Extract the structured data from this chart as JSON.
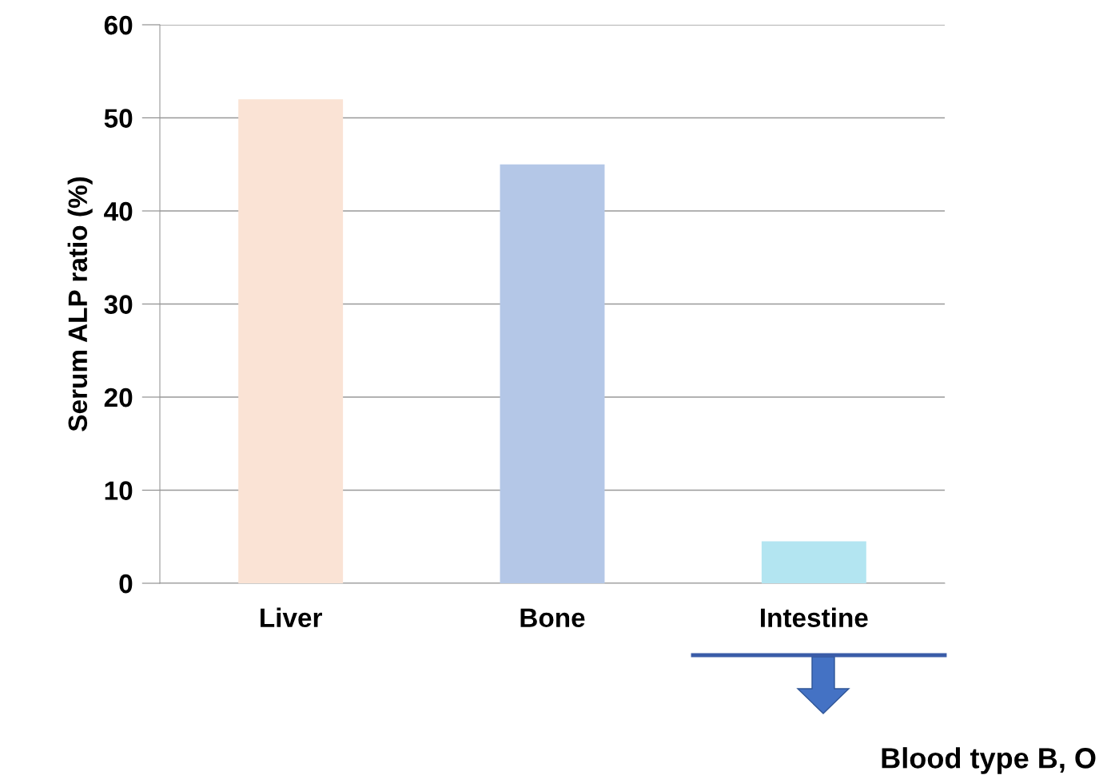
{
  "chart_data": {
    "type": "bar",
    "ylabel": "Serum ALP ratio (%)",
    "categories": [
      "Liver",
      "Bone",
      "Intestine"
    ],
    "values": [
      52,
      45,
      4.5
    ],
    "colors": [
      "#fae3d5",
      "#b4c7e7",
      "#b3e5f1"
    ],
    "ylim": [
      0,
      60
    ],
    "yticks": [
      0,
      10,
      20,
      30,
      40,
      50,
      60
    ],
    "grid": "y",
    "legend": false,
    "annotations": [
      "Blood type B, O"
    ]
  }
}
